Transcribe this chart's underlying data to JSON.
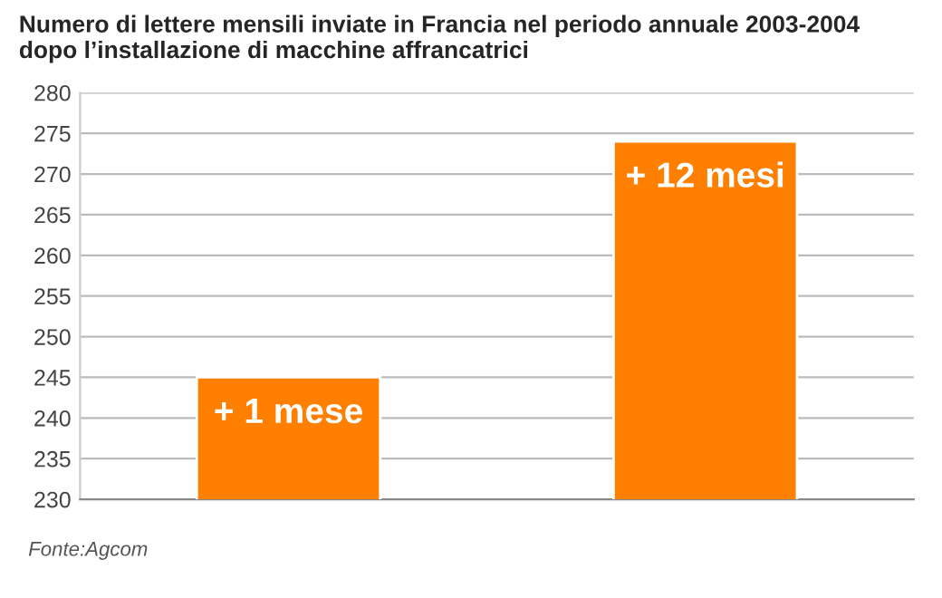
{
  "chart_data": {
    "type": "bar",
    "title": "Numero di lettere mensili inviate in Francia nel periodo annuale 2003-2004\ndopo l’installazione di macchine affrancatrici",
    "categories": [
      "+ 1 mese",
      "+ 12 mesi"
    ],
    "values": [
      245,
      274
    ],
    "color": "#ff7f00",
    "ylim": [
      230,
      280
    ],
    "yticks": [
      230,
      235,
      240,
      245,
      250,
      255,
      260,
      265,
      270,
      275,
      280
    ],
    "grid": "y",
    "annotations": [
      "Fonte:Agcom"
    ]
  }
}
